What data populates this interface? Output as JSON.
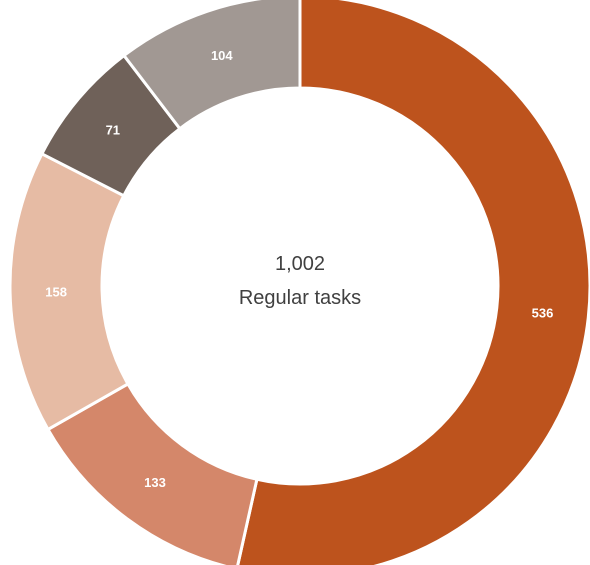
{
  "chart_data": {
    "type": "pie",
    "donut": true,
    "title": "",
    "center": {
      "value": "1,002",
      "label": "Regular tasks"
    },
    "slices": [
      {
        "value": 536,
        "label": "536",
        "color": "#BD531D"
      },
      {
        "value": 133,
        "label": "133",
        "color": "#D4876A"
      },
      {
        "value": 158,
        "label": "158",
        "color": "#E6BBA4"
      },
      {
        "value": 71,
        "label": "71",
        "color": "#6F6159"
      },
      {
        "value": 104,
        "label": "104",
        "color": "#A19893"
      }
    ],
    "start": "12 o'clock",
    "direction": "clockwise",
    "legend": "none"
  }
}
